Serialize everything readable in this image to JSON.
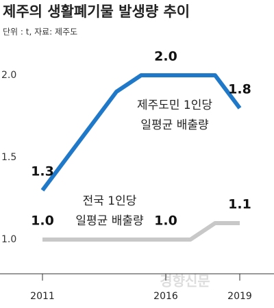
{
  "chart_data": {
    "type": "line",
    "title": "제주의 생활폐기물 발생량 추이",
    "subtitle": "단위 : t, 자료: 제주도",
    "watermark": "경향신문",
    "x": [
      2011,
      2012,
      2013,
      2014,
      2015,
      2016,
      2017,
      2018,
      2019
    ],
    "xlim": [
      2011,
      2019
    ],
    "xticks": [
      2011,
      2016,
      2019
    ],
    "ylim": [
      0.8,
      2.2
    ],
    "yticks": [
      {
        "value": 1,
        "label": "1.0"
      },
      1.5,
      {
        "value": 2,
        "label": "2.0"
      }
    ],
    "grid": false,
    "series": [
      {
        "name": "제주도민 1인당\n일평균 배출량",
        "color": "#1f78c8",
        "values": [
          1.3,
          1.5,
          1.7,
          1.9,
          2.0,
          2.0,
          2.0,
          2.0,
          1.8
        ],
        "value_labels": [
          "1.3",
          null,
          null,
          null,
          null,
          "2.0",
          null,
          null,
          "1.8"
        ]
      },
      {
        "name": "전국 1인당\n일평균 배출량",
        "color": "#c8c8c8",
        "values": [
          1.0,
          1.0,
          1.0,
          1.0,
          1.0,
          1.0,
          1.0,
          1.1,
          1.1
        ],
        "value_labels": [
          "1.0",
          null,
          null,
          null,
          null,
          "1.0",
          null,
          null,
          "1.1"
        ]
      }
    ]
  }
}
